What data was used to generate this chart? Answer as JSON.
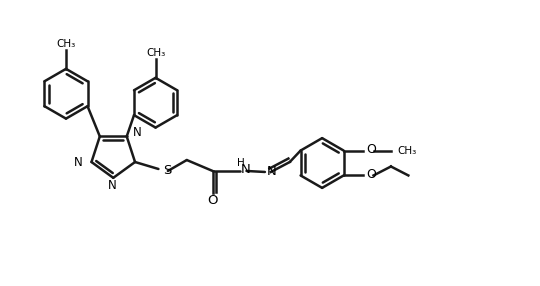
{
  "bg_color": "#ffffff",
  "line_color": "#1a1a1a",
  "lw": 1.8,
  "figsize": [
    5.4,
    2.86
  ],
  "dpi": 100,
  "xlim": [
    0,
    10.8
  ],
  "ylim": [
    0,
    5.72
  ]
}
